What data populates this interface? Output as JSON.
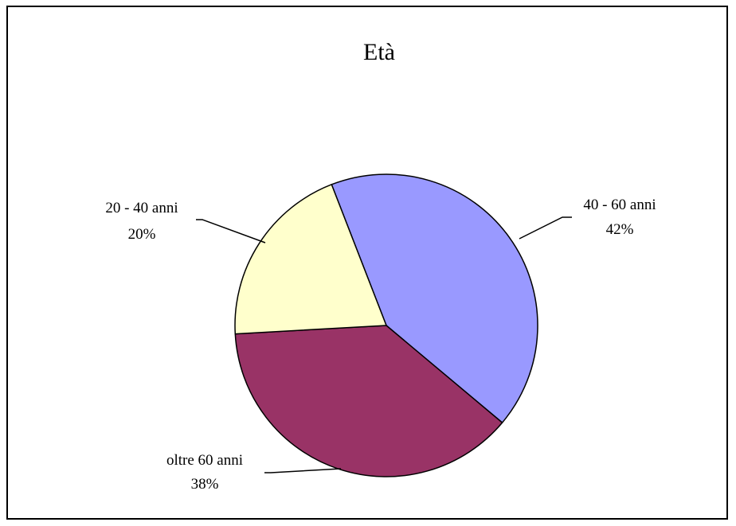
{
  "chart_data": {
    "type": "pie",
    "title": "Età",
    "slices": [
      {
        "label": "40 - 60 anni",
        "value": 42,
        "display": "42%",
        "color": "#9999ff"
      },
      {
        "label": "oltre 60 anni",
        "value": 38,
        "display": "38%",
        "color": "#993366"
      },
      {
        "label": "20 - 40 anni",
        "value": 20,
        "display": "20%",
        "color": "#ffffcc"
      }
    ],
    "start": "top, clockwise",
    "legend": "none",
    "outline_color": "#000000"
  }
}
